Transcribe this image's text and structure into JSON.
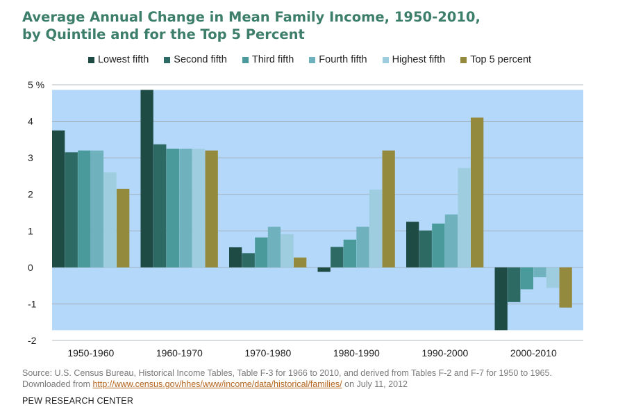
{
  "chart_data": {
    "type": "bar",
    "title_line1": "Average Annual Change in Mean Family Income, 1950-2010,",
    "title_line2": "by Quintile and for the Top 5 Percent",
    "categories": [
      "1950-1960",
      "1960-1970",
      "1970-1980",
      "1980-1990",
      "1990-2000",
      "2000-2010"
    ],
    "series": [
      {
        "name": "Lowest fifth",
        "color": "#1f4b45",
        "values": [
          3.75,
          4.86,
          0.55,
          -0.12,
          1.25,
          -1.72
        ]
      },
      {
        "name": "Second fifth",
        "color": "#2c6a63",
        "values": [
          3.15,
          3.37,
          0.39,
          0.56,
          1.01,
          -0.95
        ]
      },
      {
        "name": "Third fifth",
        "color": "#4a9a9c",
        "values": [
          3.2,
          3.25,
          0.82,
          0.76,
          1.2,
          -0.6
        ]
      },
      {
        "name": "Fourth fifth",
        "color": "#6fb1bd",
        "values": [
          3.2,
          3.25,
          1.11,
          1.11,
          1.45,
          -0.27
        ]
      },
      {
        "name": "Highest fifth",
        "color": "#9ecde0",
        "values": [
          2.6,
          3.25,
          0.91,
          2.13,
          2.72,
          -0.56
        ]
      },
      {
        "name": "Top 5 percent",
        "color": "#938a3d",
        "values": [
          2.15,
          3.2,
          0.27,
          3.2,
          4.1,
          -1.1
        ]
      }
    ],
    "yticks": [
      "5 %",
      "4",
      "3",
      "2",
      "1",
      "0",
      "-1",
      "-2"
    ],
    "ylim": [
      -2,
      5
    ],
    "plot_bg": "#b3d8fa",
    "grid": true,
    "legend_position": "top"
  },
  "source_text_before": "Source: U.S. Census Bureau, Historical Income Tables, Table F-3 for 1966 to 2010, and derived from Tables F-2 and F-7 for 1950 to 1965. Downloaded from ",
  "source_link": "http://www.census.gov/hhes/www/income/data/historical/families/",
  "source_text_after": " on July 11, 2012",
  "footer": "PEW RESEARCH CENTER"
}
